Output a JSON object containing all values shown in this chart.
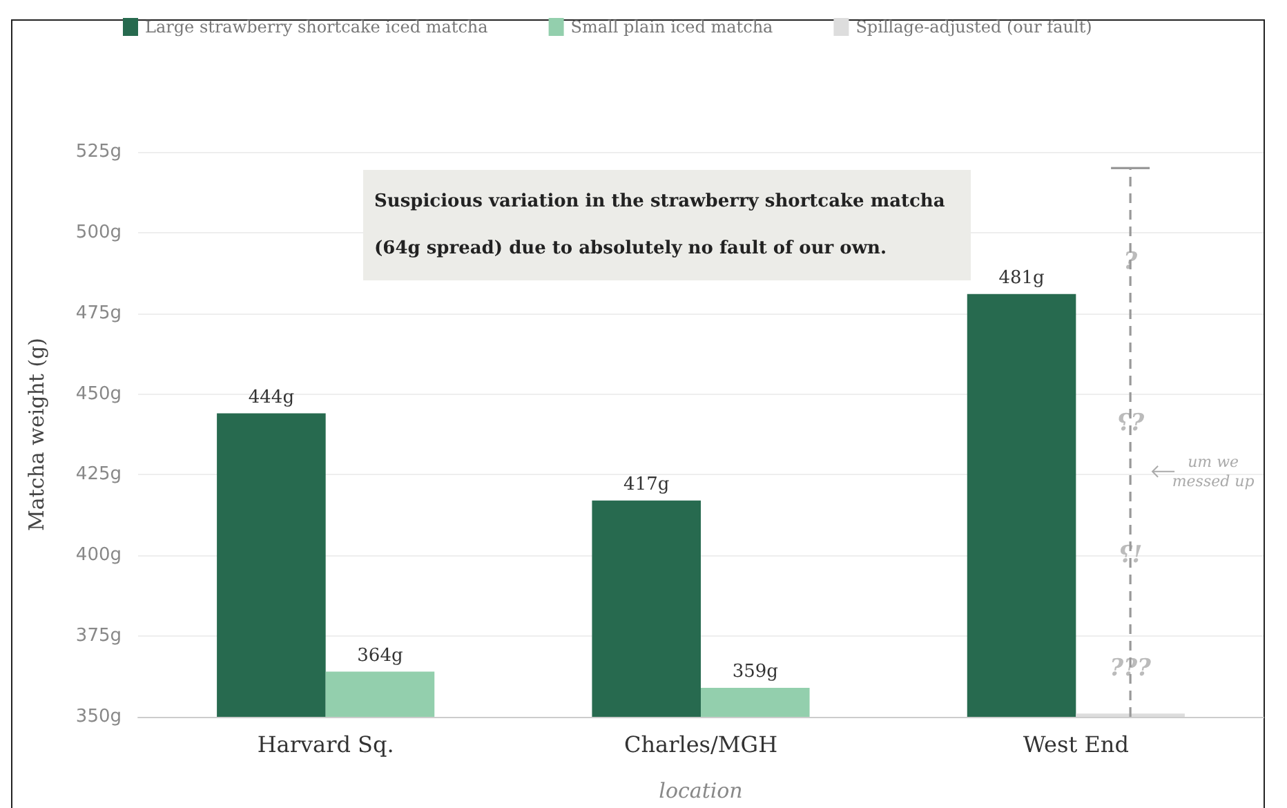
{
  "chart_data": {
    "type": "bar",
    "xlabel": "location",
    "ylabel": "Matcha weight (g)",
    "categories": [
      "Harvard Sq.",
      "Charles/MGH",
      "West End"
    ],
    "series": [
      {
        "name": "Large strawberry shortcake iced matcha",
        "color": "#276a4f",
        "values": [
          444,
          417,
          481
        ],
        "value_labels": [
          "444g",
          "417g",
          "481g"
        ]
      },
      {
        "name": "Small plain iced matcha",
        "color": "#93cfad",
        "values": [
          364,
          359,
          null
        ],
        "value_labels": [
          "364g",
          "359g",
          null
        ]
      },
      {
        "name": "Spillage-adjusted (our fault)",
        "color": "#dddddd",
        "values": [
          null,
          null,
          351
        ],
        "errors": [
          null,
          null,
          [
            350,
            520
          ]
        ]
      }
    ],
    "ylim": [
      350,
      525
    ],
    "yticks": [
      {
        "value": 350,
        "label": "350g"
      },
      {
        "value": 375,
        "label": "375g"
      },
      {
        "value": 400,
        "label": "400g"
      },
      {
        "value": 425,
        "label": "425g"
      },
      {
        "value": 450,
        "label": "450g"
      },
      {
        "value": 475,
        "label": "475g"
      },
      {
        "value": 500,
        "label": "500g"
      },
      {
        "value": 525,
        "label": "525g"
      }
    ],
    "grid": "y",
    "legend": "top left",
    "annotations": [
      "Suspicious variation in the strawberry shortcake matcha\n(64g spread) due to absolutely no fault of our own.",
      "um we\nmessed up",
      "?",
      "⸮?",
      "⸮!",
      "???"
    ]
  }
}
